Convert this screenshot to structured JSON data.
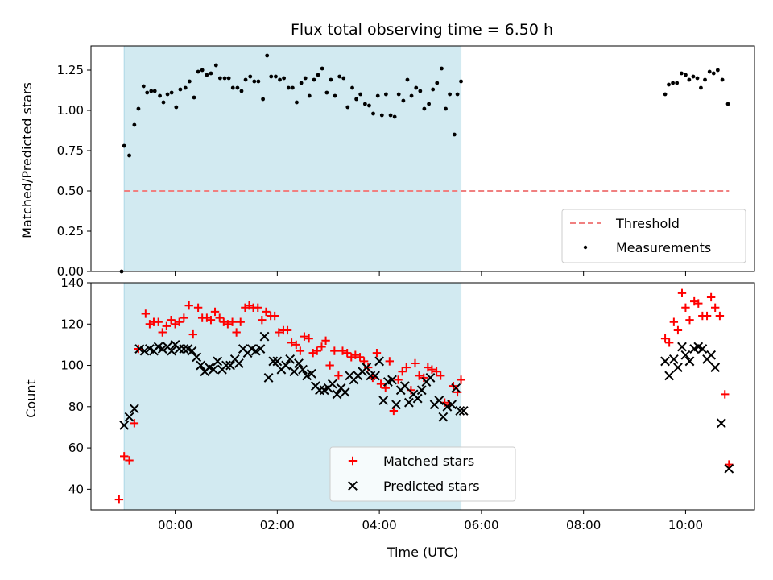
{
  "chart_data": {
    "type": "scatter",
    "title": "Flux total observing time = 6.50 h",
    "shaded_interval": {
      "start_h": -1.0,
      "end_h": 5.6,
      "color": "#add8e6"
    },
    "x_axis": {
      "label": "Time (UTC)",
      "range": [
        -1.65,
        11.35
      ],
      "tick_values": [
        0,
        2,
        4,
        6,
        8,
        10
      ],
      "tick_labels": [
        "00:00",
        "02:00",
        "04:00",
        "06:00",
        "08:00",
        "10:00"
      ]
    },
    "top_panel": {
      "ylabel": "Matched/Predicted stars",
      "ylim": [
        0,
        1.4
      ],
      "yticks": [
        0.0,
        0.25,
        0.5,
        0.75,
        1.0,
        1.25
      ],
      "ytick_labels": [
        "0.00",
        "0.25",
        "0.50",
        "0.75",
        "1.00",
        "1.25"
      ],
      "threshold": {
        "value": 0.5,
        "x_range": [
          -1.0,
          10.85
        ],
        "color": "#f08080",
        "label": "Threshold"
      },
      "measurements_label": "Measurements",
      "measurements_color": "#000000",
      "measurements": [
        [
          -1.05,
          0.0
        ],
        [
          -1.0,
          0.78
        ],
        [
          -0.9,
          0.72
        ],
        [
          -0.8,
          0.91
        ],
        [
          -0.72,
          1.01
        ],
        [
          -0.62,
          1.15
        ],
        [
          -0.55,
          1.11
        ],
        [
          -0.47,
          1.12
        ],
        [
          -0.4,
          1.12
        ],
        [
          -0.3,
          1.09
        ],
        [
          -0.23,
          1.05
        ],
        [
          -0.15,
          1.1
        ],
        [
          -0.07,
          1.11
        ],
        [
          0.02,
          1.02
        ],
        [
          0.1,
          1.13
        ],
        [
          0.2,
          1.14
        ],
        [
          0.28,
          1.18
        ],
        [
          0.37,
          1.08
        ],
        [
          0.45,
          1.24
        ],
        [
          0.53,
          1.25
        ],
        [
          0.62,
          1.22
        ],
        [
          0.7,
          1.23
        ],
        [
          0.8,
          1.28
        ],
        [
          0.88,
          1.2
        ],
        [
          0.97,
          1.2
        ],
        [
          1.05,
          1.2
        ],
        [
          1.13,
          1.14
        ],
        [
          1.22,
          1.14
        ],
        [
          1.3,
          1.12
        ],
        [
          1.38,
          1.19
        ],
        [
          1.47,
          1.21
        ],
        [
          1.55,
          1.18
        ],
        [
          1.63,
          1.18
        ],
        [
          1.72,
          1.07
        ],
        [
          1.8,
          1.34
        ],
        [
          1.88,
          1.21
        ],
        [
          1.97,
          1.21
        ],
        [
          2.05,
          1.19
        ],
        [
          2.13,
          1.2
        ],
        [
          2.22,
          1.14
        ],
        [
          2.3,
          1.14
        ],
        [
          2.38,
          1.05
        ],
        [
          2.47,
          1.17
        ],
        [
          2.55,
          1.2
        ],
        [
          2.63,
          1.09
        ],
        [
          2.72,
          1.19
        ],
        [
          2.8,
          1.22
        ],
        [
          2.88,
          1.26
        ],
        [
          2.97,
          1.11
        ],
        [
          3.05,
          1.19
        ],
        [
          3.13,
          1.09
        ],
        [
          3.22,
          1.21
        ],
        [
          3.3,
          1.2
        ],
        [
          3.38,
          1.02
        ],
        [
          3.47,
          1.14
        ],
        [
          3.55,
          1.07
        ],
        [
          3.63,
          1.1
        ],
        [
          3.72,
          1.04
        ],
        [
          3.8,
          1.03
        ],
        [
          3.88,
          0.98
        ],
        [
          3.97,
          1.09
        ],
        [
          4.05,
          0.97
        ],
        [
          4.13,
          1.1
        ],
        [
          4.22,
          0.97
        ],
        [
          4.3,
          0.96
        ],
        [
          4.38,
          1.1
        ],
        [
          4.47,
          1.06
        ],
        [
          4.55,
          1.19
        ],
        [
          4.63,
          1.09
        ],
        [
          4.72,
          1.14
        ],
        [
          4.8,
          1.12
        ],
        [
          4.88,
          1.01
        ],
        [
          4.97,
          1.04
        ],
        [
          5.05,
          1.13
        ],
        [
          5.13,
          1.17
        ],
        [
          5.22,
          1.26
        ],
        [
          5.3,
          1.01
        ],
        [
          5.38,
          1.1
        ],
        [
          5.47,
          0.85
        ],
        [
          5.53,
          1.1
        ],
        [
          5.6,
          1.18
        ],
        [
          9.6,
          1.1
        ],
        [
          9.67,
          1.16
        ],
        [
          9.75,
          1.17
        ],
        [
          9.83,
          1.17
        ],
        [
          9.92,
          1.23
        ],
        [
          10.0,
          1.22
        ],
        [
          10.07,
          1.19
        ],
        [
          10.15,
          1.21
        ],
        [
          10.23,
          1.2
        ],
        [
          10.3,
          1.14
        ],
        [
          10.38,
          1.19
        ],
        [
          10.47,
          1.24
        ],
        [
          10.55,
          1.23
        ],
        [
          10.63,
          1.25
        ],
        [
          10.72,
          1.19
        ],
        [
          10.83,
          1.04
        ]
      ]
    },
    "bottom_panel": {
      "ylabel": "Count",
      "ylim": [
        30,
        140
      ],
      "yticks": [
        40,
        60,
        80,
        100,
        120,
        140
      ],
      "ytick_labels": [
        "40",
        "60",
        "80",
        "100",
        "120",
        "140"
      ],
      "series": [
        {
          "name": "Matched stars",
          "marker": "plus",
          "color": "#ff0000",
          "points": [
            [
              -1.1,
              35
            ],
            [
              -1.0,
              56
            ],
            [
              -0.9,
              54
            ],
            [
              -0.8,
              72
            ],
            [
              -0.72,
              108
            ],
            [
              -0.58,
              125
            ],
            [
              -0.5,
              120
            ],
            [
              -0.42,
              121
            ],
            [
              -0.33,
              121
            ],
            [
              -0.25,
              116
            ],
            [
              -0.17,
              119
            ],
            [
              -0.08,
              122
            ],
            [
              0.0,
              120
            ],
            [
              0.08,
              121
            ],
            [
              0.17,
              123
            ],
            [
              0.27,
              129
            ],
            [
              0.35,
              115
            ],
            [
              0.45,
              128
            ],
            [
              0.53,
              123
            ],
            [
              0.62,
              123
            ],
            [
              0.7,
              122
            ],
            [
              0.78,
              126
            ],
            [
              0.87,
              123
            ],
            [
              0.95,
              121
            ],
            [
              1.03,
              120
            ],
            [
              1.12,
              121
            ],
            [
              1.2,
              116
            ],
            [
              1.28,
              121
            ],
            [
              1.37,
              128
            ],
            [
              1.45,
              129
            ],
            [
              1.53,
              128
            ],
            [
              1.62,
              128
            ],
            [
              1.7,
              122
            ],
            [
              1.78,
              126
            ],
            [
              1.87,
              124
            ],
            [
              1.95,
              124
            ],
            [
              2.03,
              116
            ],
            [
              2.12,
              117
            ],
            [
              2.2,
              117
            ],
            [
              2.28,
              111
            ],
            [
              2.37,
              110
            ],
            [
              2.45,
              107
            ],
            [
              2.53,
              114
            ],
            [
              2.62,
              113
            ],
            [
              2.7,
              106
            ],
            [
              2.78,
              107
            ],
            [
              2.87,
              109
            ],
            [
              2.95,
              112
            ],
            [
              3.03,
              100
            ],
            [
              3.12,
              107
            ],
            [
              3.2,
              95
            ],
            [
              3.28,
              107
            ],
            [
              3.37,
              106
            ],
            [
              3.45,
              104
            ],
            [
              3.53,
              105
            ],
            [
              3.62,
              104
            ],
            [
              3.7,
              102
            ],
            [
              3.78,
              99
            ],
            [
              3.87,
              94
            ],
            [
              3.95,
              106
            ],
            [
              4.03,
              91
            ],
            [
              4.12,
              89
            ],
            [
              4.2,
              102
            ],
            [
              4.28,
              78
            ],
            [
              4.37,
              93
            ],
            [
              4.45,
              97
            ],
            [
              4.53,
              99
            ],
            [
              4.62,
              88
            ],
            [
              4.7,
              101
            ],
            [
              4.78,
              95
            ],
            [
              4.87,
              94
            ],
            [
              4.95,
              99
            ],
            [
              5.03,
              98
            ],
            [
              5.12,
              97
            ],
            [
              5.2,
              95
            ],
            [
              5.28,
              82
            ],
            [
              5.37,
              81
            ],
            [
              5.45,
              90
            ],
            [
              5.53,
              87
            ],
            [
              5.6,
              93
            ],
            [
              9.6,
              113
            ],
            [
              9.68,
              111
            ],
            [
              9.77,
              121
            ],
            [
              9.85,
              117
            ],
            [
              9.93,
              135
            ],
            [
              10.0,
              128
            ],
            [
              10.08,
              122
            ],
            [
              10.17,
              131
            ],
            [
              10.25,
              130
            ],
            [
              10.33,
              124
            ],
            [
              10.42,
              124
            ],
            [
              10.5,
              133
            ],
            [
              10.58,
              128
            ],
            [
              10.67,
              124
            ],
            [
              10.77,
              86
            ],
            [
              10.85,
              52
            ]
          ]
        },
        {
          "name": "Predicted stars",
          "marker": "x",
          "color": "#000000",
          "points": [
            [
              -1.0,
              71
            ],
            [
              -0.9,
              75
            ],
            [
              -0.8,
              79
            ],
            [
              -0.7,
              108
            ],
            [
              -0.6,
              107
            ],
            [
              -0.5,
              108
            ],
            [
              -0.42,
              107
            ],
            [
              -0.33,
              109
            ],
            [
              -0.25,
              108
            ],
            [
              -0.15,
              109
            ],
            [
              -0.07,
              107
            ],
            [
              0.0,
              110
            ],
            [
              0.08,
              108
            ],
            [
              0.17,
              108
            ],
            [
              0.25,
              108
            ],
            [
              0.33,
              107
            ],
            [
              0.42,
              104
            ],
            [
              0.5,
              100
            ],
            [
              0.58,
              97
            ],
            [
              0.67,
              99
            ],
            [
              0.75,
              98
            ],
            [
              0.83,
              102
            ],
            [
              0.92,
              98
            ],
            [
              1.0,
              100
            ],
            [
              1.08,
              100
            ],
            [
              1.17,
              103
            ],
            [
              1.25,
              101
            ],
            [
              1.33,
              108
            ],
            [
              1.42,
              106
            ],
            [
              1.5,
              108
            ],
            [
              1.58,
              107
            ],
            [
              1.67,
              108
            ],
            [
              1.75,
              114
            ],
            [
              1.83,
              94
            ],
            [
              1.92,
              102
            ],
            [
              2.0,
              102
            ],
            [
              2.08,
              98
            ],
            [
              2.17,
              100
            ],
            [
              2.25,
              103
            ],
            [
              2.33,
              97
            ],
            [
              2.42,
              101
            ],
            [
              2.5,
              98
            ],
            [
              2.58,
              95
            ],
            [
              2.67,
              96
            ],
            [
              2.75,
              90
            ],
            [
              2.83,
              88
            ],
            [
              2.92,
              88
            ],
            [
              3.0,
              89
            ],
            [
              3.08,
              91
            ],
            [
              3.17,
              86
            ],
            [
              3.25,
              89
            ],
            [
              3.33,
              87
            ],
            [
              3.42,
              95
            ],
            [
              3.5,
              93
            ],
            [
              3.58,
              95
            ],
            [
              3.67,
              97
            ],
            [
              3.75,
              99
            ],
            [
              3.83,
              95
            ],
            [
              3.92,
              95
            ],
            [
              4.0,
              102
            ],
            [
              4.08,
              83
            ],
            [
              4.17,
              92
            ],
            [
              4.25,
              93
            ],
            [
              4.33,
              81
            ],
            [
              4.42,
              88
            ],
            [
              4.5,
              90
            ],
            [
              4.58,
              82
            ],
            [
              4.67,
              86
            ],
            [
              4.75,
              84
            ],
            [
              4.83,
              88
            ],
            [
              4.92,
              92
            ],
            [
              5.0,
              94
            ],
            [
              5.08,
              81
            ],
            [
              5.17,
              83
            ],
            [
              5.25,
              75
            ],
            [
              5.33,
              80
            ],
            [
              5.42,
              81
            ],
            [
              5.5,
              89
            ],
            [
              5.58,
              78
            ],
            [
              5.65,
              78
            ],
            [
              9.6,
              102
            ],
            [
              9.68,
              95
            ],
            [
              9.77,
              103
            ],
            [
              9.85,
              99
            ],
            [
              9.93,
              109
            ],
            [
              10.0,
              105
            ],
            [
              10.08,
              102
            ],
            [
              10.17,
              108
            ],
            [
              10.25,
              109
            ],
            [
              10.33,
              108
            ],
            [
              10.42,
              103
            ],
            [
              10.5,
              105
            ],
            [
              10.58,
              99
            ],
            [
              10.7,
              72
            ],
            [
              10.85,
              50
            ]
          ]
        }
      ]
    }
  }
}
